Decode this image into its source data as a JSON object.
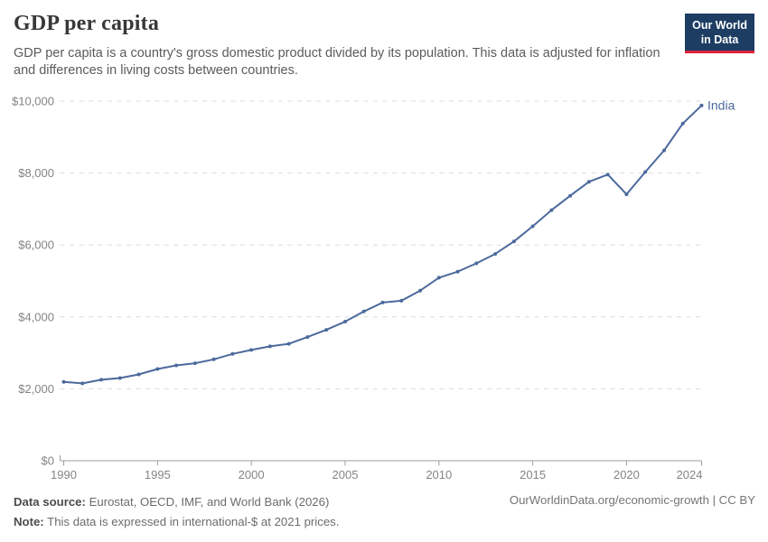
{
  "header": {
    "title": "GDP per capita",
    "subtitle": "GDP per capita is a country's gross domestic product divided by its population. This data is adjusted for inflation and differences in living costs between countries.",
    "logo": {
      "line1": "Our World",
      "line2": "in Data",
      "bg_color": "#1d3d63",
      "accent_color": "#e0233c"
    }
  },
  "chart_data": {
    "type": "line",
    "title": "GDP per capita",
    "entity_label": "India",
    "x": [
      1990,
      1991,
      1992,
      1993,
      1994,
      1995,
      1996,
      1997,
      1998,
      1999,
      2000,
      2001,
      2002,
      2003,
      2004,
      2005,
      2006,
      2007,
      2008,
      2009,
      2010,
      2011,
      2012,
      2013,
      2014,
      2015,
      2016,
      2017,
      2018,
      2019,
      2020,
      2021,
      2022,
      2023,
      2024
    ],
    "series": [
      {
        "name": "India",
        "color": "#4c6a9c",
        "values": [
          2190,
          2150,
          2250,
          2300,
          2400,
          2550,
          2650,
          2710,
          2820,
          2970,
          3080,
          3180,
          3250,
          3440,
          3640,
          3870,
          4150,
          4400,
          4450,
          4730,
          5090,
          5260,
          5490,
          5750,
          6100,
          6520,
          6970,
          7370,
          7760,
          7960,
          7410,
          8030,
          8630,
          9380,
          9880
        ]
      }
    ],
    "xlabel": "",
    "ylabel": "",
    "xlim": [
      1990,
      2024
    ],
    "ylim": [
      0,
      10000
    ],
    "x_ticks": [
      1990,
      1995,
      2000,
      2005,
      2010,
      2015,
      2020,
      2024
    ],
    "x_tick_labels": [
      "1990",
      "1995",
      "2000",
      "2005",
      "2010",
      "2015",
      "2020",
      "2024"
    ],
    "y_ticks": [
      0,
      2000,
      4000,
      6000,
      8000,
      10000
    ],
    "y_tick_labels": [
      "$0",
      "$2,000",
      "$4,000",
      "$6,000",
      "$8,000",
      "$10,000"
    ],
    "grid": "horizontal dashed",
    "legend_position": "end-of-line label",
    "markers": true
  },
  "footer": {
    "datasource_label": "Data source:",
    "datasource_text": "Eurostat, OECD, IMF, and World Bank (2026)",
    "note_label": "Note:",
    "note_text": "This data is expressed in international-$ at 2021 prices.",
    "link_text": "OurWorldinData.org/economic-growth | CC BY"
  },
  "colors": {
    "line": "#4c6a9c",
    "grid": "#dcdcdc",
    "axis": "#9e9e9e",
    "tick_text": "#848484",
    "logo_bg": "#1d3d63",
    "logo_accent": "#e0233c"
  }
}
